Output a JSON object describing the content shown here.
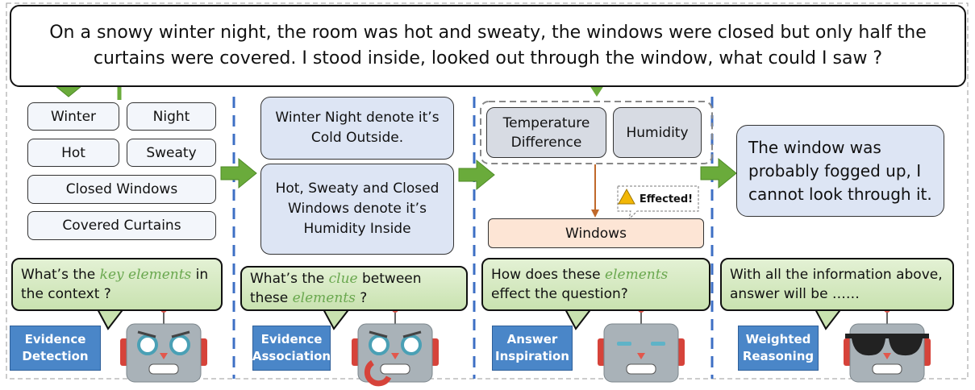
{
  "question": "On a snowy winter night, the room was hot and sweaty, the windows were closed but only half the curtains were covered. I stood inside, looked out through the window, what could I saw ?",
  "keywords": [
    "Winter",
    "Night",
    "Hot",
    "Sweaty",
    "Closed Windows",
    "Covered Curtains"
  ],
  "associations": [
    "Winter Night denote it’s Cold Outside.",
    "Hot, Sweaty and Closed Windows denote it’s Humidity Inside"
  ],
  "factors": [
    "Temperature Difference",
    "Humidity"
  ],
  "effect_label": "Effected!",
  "target": "Windows",
  "answer": "The window was probably fogged up, I cannot look through it.",
  "prompts": [
    {
      "parts": [
        "What’s the ",
        "key elements",
        " in the context ?"
      ]
    },
    {
      "parts": [
        "What’s the ",
        "clue",
        " between these ",
        "elements",
        " ?"
      ]
    },
    {
      "parts": [
        "How does these ",
        "elements",
        " effect the question?"
      ]
    },
    {
      "parts": [
        "With all the information above, answer will be ……"
      ]
    }
  ],
  "stages": [
    "Evidence Detection",
    "Evidence Association",
    "Answer Inspiration",
    "Weighted Reasoning"
  ]
}
